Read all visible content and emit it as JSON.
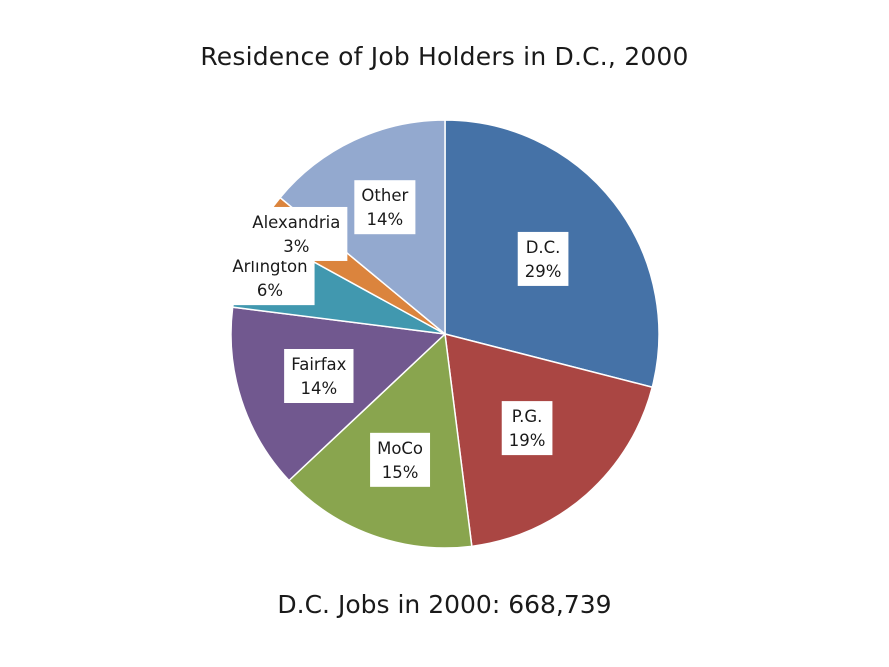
{
  "chart_data": {
    "type": "pie",
    "title": "Residence of Job Holders in D.C., 2000",
    "subtitle": "D.C. Jobs in 2000: 668,739",
    "slices": [
      {
        "name": "D.C.",
        "value": 29,
        "label": "29%",
        "color": "#4572A7"
      },
      {
        "name": "P.G.",
        "value": 19,
        "label": "19%",
        "color": "#AA4643"
      },
      {
        "name": "MoCo",
        "value": 15,
        "label": "15%",
        "color": "#89A54E"
      },
      {
        "name": "Fairfax",
        "value": 14,
        "label": "14%",
        "color": "#71588F"
      },
      {
        "name": "Arlington",
        "value": 6,
        "label": "6%",
        "color": "#4198AF"
      },
      {
        "name": "Alexandria",
        "value": 3,
        "label": "3%",
        "color": "#DB843D"
      },
      {
        "name": "Other",
        "value": 14,
        "label": "14%",
        "color": "#93A9CF"
      }
    ]
  }
}
